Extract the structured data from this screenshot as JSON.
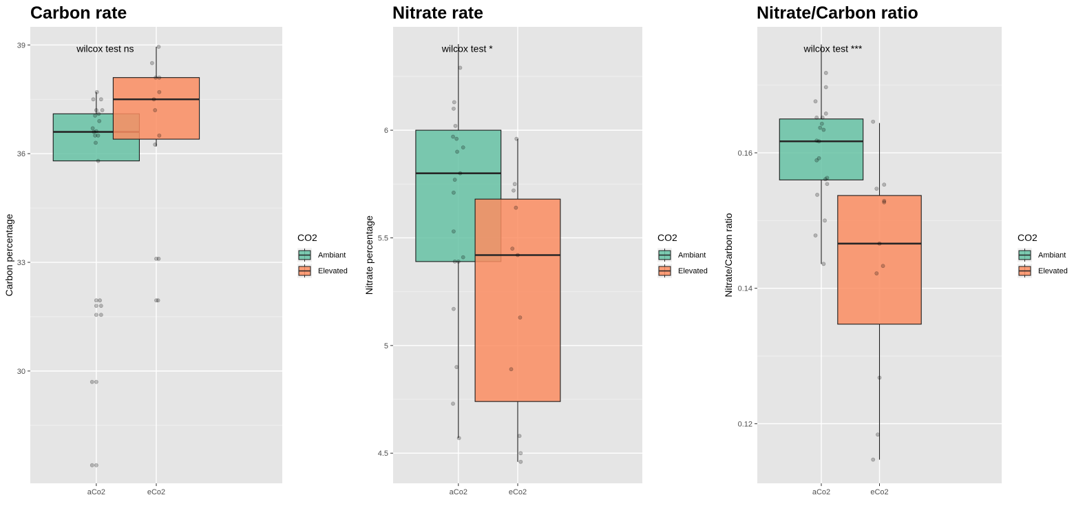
{
  "legend": {
    "title": "CO2",
    "items": [
      {
        "label": "Ambiant",
        "color": "#66c2a5"
      },
      {
        "label": "Elevated",
        "color": "#fc8d62"
      }
    ]
  },
  "chart_data": [
    {
      "type": "boxplot",
      "title": "Carbon rate",
      "ylabel": "Carbon percentage",
      "xlabel": "",
      "categories": [
        "aCo2",
        "eCo2"
      ],
      "yticks": [
        30,
        33,
        36,
        39
      ],
      "ylim": [
        26.9,
        39.5
      ],
      "annotation": {
        "text": "wilcox test ns",
        "x": 1.15,
        "y": 38.9
      },
      "legend_position": "right",
      "grid": true,
      "boxes": [
        {
          "category": "aCo2",
          "group": "Ambiant",
          "q1": 35.8,
          "median": 36.6,
          "q3": 37.1,
          "whisker_low": 35.8,
          "whisker_high": 37.7,
          "points": [
            [
              0.95,
              37.5
            ],
            [
              1.01,
              37.7
            ],
            [
              1.08,
              37.5
            ],
            [
              1.0,
              37.2
            ],
            [
              1.1,
              37.2
            ],
            [
              0.98,
              37.05
            ],
            [
              1.04,
              37.1
            ],
            [
              1.05,
              36.9
            ],
            [
              0.94,
              36.7
            ],
            [
              0.96,
              36.6
            ],
            [
              1.0,
              36.62
            ],
            [
              0.98,
              36.5
            ],
            [
              1.03,
              36.5
            ],
            [
              0.99,
              36.3
            ],
            [
              1.03,
              35.8
            ],
            [
              0.93,
              29.7
            ],
            [
              1.0,
              29.7
            ],
            [
              0.93,
              27.4
            ],
            [
              1.0,
              27.4
            ],
            [
              1.0,
              31.95
            ],
            [
              1.06,
              31.95
            ],
            [
              1.0,
              31.8
            ],
            [
              1.08,
              31.8
            ],
            [
              1.0,
              31.55
            ],
            [
              1.08,
              31.55
            ]
          ]
        },
        {
          "category": "eCo2",
          "group": "Elevated",
          "q1": 36.4,
          "median": 37.5,
          "q3": 38.1,
          "whisker_low": 36.2,
          "whisker_high": 38.95,
          "points": [
            [
              2.04,
              38.95
            ],
            [
              1.93,
              38.5
            ],
            [
              1.99,
              38.1
            ],
            [
              2.05,
              38.1
            ],
            [
              2.05,
              37.7
            ],
            [
              1.96,
              37.5
            ],
            [
              1.98,
              37.2
            ],
            [
              2.05,
              36.5
            ],
            [
              1.98,
              36.25
            ],
            [
              2.0,
              33.1
            ],
            [
              2.04,
              33.1
            ],
            [
              2.0,
              31.95
            ],
            [
              2.03,
              31.95
            ]
          ]
        }
      ]
    },
    {
      "type": "boxplot",
      "title": "Nitrate rate",
      "ylabel": "Nitrate percentage",
      "xlabel": "",
      "categories": [
        "aCo2",
        "eCo2"
      ],
      "yticks": [
        4.5,
        5.0,
        5.5,
        6.0
      ],
      "ylim": [
        4.36,
        6.48
      ],
      "annotation": {
        "text": "wilcox test *",
        "x": 1.15,
        "y": 6.38
      },
      "legend_position": "right",
      "grid": true,
      "boxes": [
        {
          "category": "aCo2",
          "group": "Ambiant",
          "q1": 5.39,
          "median": 5.8,
          "q3": 6.0,
          "whisker_low": 4.57,
          "whisker_high": 6.4,
          "points": [
            [
              1.03,
              6.29
            ],
            [
              0.93,
              6.13
            ],
            [
              0.92,
              6.1
            ],
            [
              0.95,
              6.02
            ],
            [
              0.91,
              5.97
            ],
            [
              0.97,
              5.96
            ],
            [
              1.08,
              5.92
            ],
            [
              0.98,
              5.9
            ],
            [
              1.03,
              5.8
            ],
            [
              0.94,
              5.77
            ],
            [
              0.92,
              5.71
            ],
            [
              0.92,
              5.53
            ],
            [
              1.08,
              5.41
            ],
            [
              0.94,
              5.39
            ],
            [
              1.0,
              5.39
            ],
            [
              0.92,
              5.17
            ],
            [
              0.97,
              4.9
            ],
            [
              0.91,
              4.73
            ],
            [
              1.01,
              4.57
            ]
          ]
        },
        {
          "category": "eCo2",
          "group": "Elevated",
          "q1": 4.74,
          "median": 5.42,
          "q3": 5.68,
          "whisker_low": 4.46,
          "whisker_high": 5.96,
          "points": [
            [
              1.98,
              5.96
            ],
            [
              1.95,
              5.75
            ],
            [
              1.93,
              5.72
            ],
            [
              1.97,
              5.64
            ],
            [
              1.91,
              5.45
            ],
            [
              2.0,
              5.42
            ],
            [
              2.04,
              5.13
            ],
            [
              1.89,
              4.89
            ],
            [
              2.03,
              4.58
            ],
            [
              2.05,
              4.5
            ],
            [
              2.05,
              4.46
            ]
          ]
        }
      ]
    },
    {
      "type": "boxplot",
      "title": "Nitrate/Carbon ratio",
      "ylabel": "Nitrate/Carbon ratio",
      "xlabel": "",
      "categories": [
        "aCo2",
        "eCo2"
      ],
      "yticks": [
        0.12,
        0.14,
        0.16
      ],
      "ylim": [
        0.1112,
        0.1786
      ],
      "annotation": {
        "text": "wilcox test ***",
        "x": 1.2,
        "y": 0.1754
      },
      "legend_position": "right",
      "grid": true,
      "boxes": [
        {
          "category": "aCo2",
          "group": "Ambiant",
          "q1": 0.156,
          "median": 0.1617,
          "q3": 0.165,
          "whisker_low": 0.1436,
          "whisker_high": 0.176,
          "points": [
            [
              1.08,
              0.1718
            ],
            [
              1.08,
              0.1697
            ],
            [
              0.9,
              0.1676
            ],
            [
              1.08,
              0.1658
            ],
            [
              0.92,
              0.1652
            ],
            [
              1.02,
              0.1652
            ],
            [
              1.01,
              0.1643
            ],
            [
              0.98,
              0.1637
            ],
            [
              1.04,
              0.1634
            ],
            [
              0.92,
              0.1618
            ],
            [
              0.96,
              0.1617
            ],
            [
              0.96,
              0.1592
            ],
            [
              0.92,
              0.1589
            ],
            [
              1.1,
              0.1563
            ],
            [
              1.07,
              0.1561
            ],
            [
              1.1,
              0.1554
            ],
            [
              0.93,
              0.1538
            ],
            [
              1.06,
              0.15
            ],
            [
              0.9,
              0.1478
            ],
            [
              1.04,
              0.1436
            ]
          ]
        },
        {
          "category": "eCo2",
          "group": "Elevated",
          "q1": 0.1347,
          "median": 0.1466,
          "q3": 0.1537,
          "whisker_low": 0.1147,
          "whisker_high": 0.1644,
          "points": [
            [
              1.89,
              0.1646
            ],
            [
              2.08,
              0.1553
            ],
            [
              1.95,
              0.1547
            ],
            [
              2.08,
              0.1529
            ],
            [
              2.08,
              0.1527
            ],
            [
              2.0,
              0.1466
            ],
            [
              2.06,
              0.1433
            ],
            [
              1.95,
              0.1422
            ],
            [
              2.0,
              0.1268
            ],
            [
              1.97,
              0.1184
            ],
            [
              1.89,
              0.1147
            ]
          ]
        }
      ]
    }
  ]
}
